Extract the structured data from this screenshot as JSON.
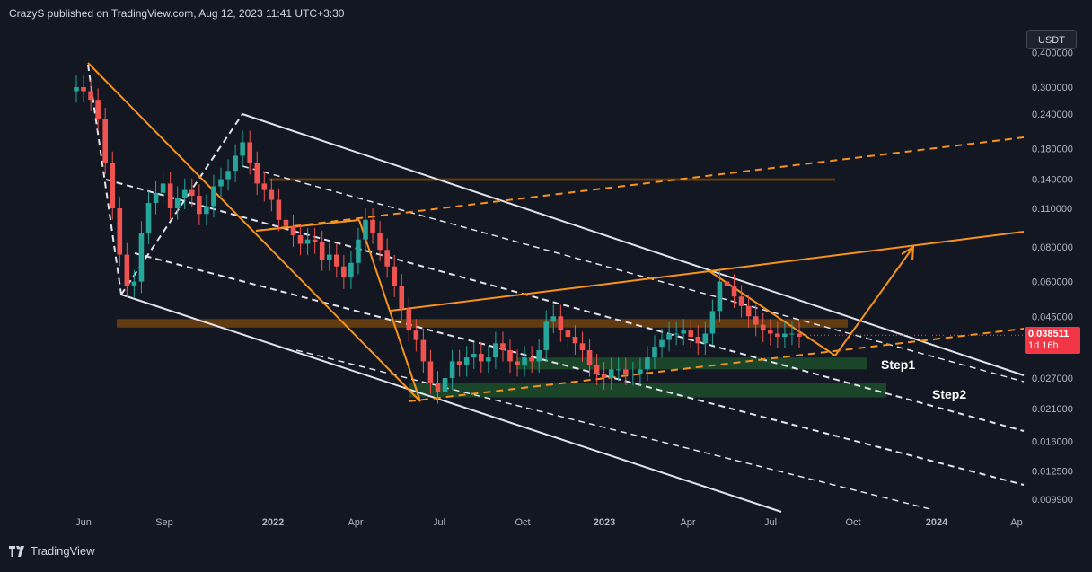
{
  "header": {
    "text": "CrazyS published on TradingView.com, Aug 12, 2023 11:41 UTC+3:30"
  },
  "footer": {
    "brand": "TradingView",
    "logo_icon": "tradingview-logo-icon"
  },
  "currency": {
    "label": "USDT"
  },
  "last_price": {
    "value": "0.038511",
    "countdown": "1d 16h",
    "color": "#f23645"
  },
  "colors": {
    "background": "#131722",
    "up": "#26a69a",
    "down": "#ef5350",
    "orange": "#f7931a",
    "brown_zone": "#6b3f10",
    "green_zone": "#1c4d2a",
    "white_line": "#e0e3eb"
  },
  "chart_data": {
    "type": "candlestick",
    "title": "",
    "x_tick_labels": [
      "Jun",
      "Sep",
      "2022",
      "Apr",
      "Jul",
      "Oct",
      "2023",
      "Apr",
      "Jul",
      "Oct",
      "2024",
      "Ap"
    ],
    "y_tick_labels": [
      "0.400000",
      "0.300000",
      "0.240000",
      "0.180000",
      "0.140000",
      "0.110000",
      "0.080000",
      "0.060000",
      "0.045000",
      "0.027000",
      "0.021000",
      "0.016000",
      "0.012500",
      "0.009900"
    ],
    "y_scale": "log",
    "ylim": [
      0.0085,
      0.42
    ],
    "annotations": [
      "Step1",
      "Step2"
    ],
    "zones": [
      {
        "kind": "resistance",
        "color": "brown",
        "price_low": 0.041,
        "price_high": 0.044
      },
      {
        "kind": "resistance",
        "color": "brown",
        "price_low": 0.139,
        "price_high": 0.141
      },
      {
        "kind": "support",
        "color": "green",
        "label": "Step1",
        "price_low": 0.029,
        "price_high": 0.032
      },
      {
        "kind": "support",
        "color": "green",
        "label": "Step2",
        "price_low": 0.023,
        "price_high": 0.026
      }
    ],
    "series": [
      {
        "close": [
          0.3,
          0.29,
          0.27,
          0.23,
          0.16,
          0.11,
          0.075,
          0.058,
          0.06,
          0.09,
          0.115,
          0.125,
          0.135,
          0.11,
          0.12,
          0.128,
          0.122,
          0.105,
          0.112,
          0.132,
          0.14,
          0.15,
          0.17,
          0.19,
          0.16,
          0.135,
          0.128,
          0.118,
          0.1,
          0.095,
          0.088,
          0.082,
          0.085,
          0.083,
          0.072,
          0.075,
          0.068,
          0.062,
          0.07,
          0.085,
          0.1,
          0.09,
          0.078,
          0.068,
          0.058,
          0.048,
          0.04,
          0.037,
          0.031,
          0.026,
          0.024,
          0.027,
          0.031,
          0.03,
          0.032,
          0.033,
          0.031,
          0.032,
          0.036,
          0.034,
          0.031,
          0.03,
          0.032,
          0.031,
          0.034,
          0.043,
          0.045,
          0.04,
          0.038,
          0.036,
          0.034,
          0.03,
          0.028,
          0.027,
          0.029,
          0.029,
          0.028,
          0.028,
          0.029,
          0.032,
          0.035,
          0.037,
          0.039,
          0.039,
          0.04,
          0.038,
          0.036,
          0.039,
          0.047,
          0.06,
          0.058,
          0.053,
          0.049,
          0.045,
          0.042,
          0.04,
          0.039,
          0.038,
          0.039,
          0.039,
          0.038
        ]
      }
    ]
  }
}
